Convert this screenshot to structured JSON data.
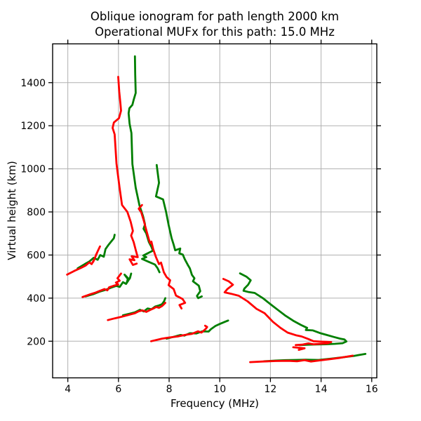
{
  "figure": {
    "title_line1": "Oblique ionogram for path length 2000 km",
    "title_line2": "Operational MUFx for this path: 15.0 MHz"
  },
  "chart_data": {
    "type": "line",
    "title": "Oblique ionogram for path length 2000 km\nOperational MUFx for this path: 15.0 MHz",
    "xlabel": "Frequency (MHz)",
    "ylabel": "Virtual height (km)",
    "xlim": [
      3.4,
      16.2
    ],
    "ylim": [
      30,
      1580
    ],
    "xticks": [
      4,
      6,
      8,
      10,
      12,
      14,
      16
    ],
    "yticks": [
      200,
      400,
      600,
      800,
      1000,
      1200,
      1400
    ],
    "grid": true,
    "legend_position": "none",
    "colors": {
      "red_trace": "#ff0000",
      "green_trace": "#007f00",
      "grid": "#b0b0b0",
      "frame": "#000000",
      "background": "#ffffff"
    },
    "line_width": 2.8,
    "series": [
      {
        "name": "green-3F-high-ray",
        "color": "green",
        "points": [
          [
            6.65,
            1522
          ],
          [
            6.66,
            1437
          ],
          [
            6.68,
            1352
          ],
          [
            6.6,
            1320
          ],
          [
            6.55,
            1297
          ],
          [
            6.43,
            1281
          ],
          [
            6.4,
            1258
          ],
          [
            6.44,
            1209
          ],
          [
            6.51,
            1166
          ],
          [
            6.55,
            1022
          ],
          [
            6.68,
            912
          ],
          [
            6.83,
            830
          ],
          [
            6.97,
            780
          ],
          [
            7.05,
            742
          ],
          [
            6.99,
            722
          ],
          [
            7.1,
            700
          ],
          [
            7.2,
            660
          ],
          [
            7.3,
            638
          ],
          [
            7.36,
            620
          ],
          [
            6.98,
            598
          ],
          [
            7.1,
            590
          ],
          [
            6.93,
            582
          ],
          [
            7.2,
            568
          ],
          [
            7.44,
            556
          ],
          [
            7.54,
            540
          ],
          [
            7.62,
            520
          ]
        ]
      },
      {
        "name": "red-3F-high-ray",
        "color": "red",
        "points": [
          [
            5.99,
            1427
          ],
          [
            6.03,
            1360
          ],
          [
            6.08,
            1300
          ],
          [
            6.1,
            1270
          ],
          [
            6.02,
            1235
          ],
          [
            5.82,
            1215
          ],
          [
            5.77,
            1190
          ],
          [
            5.85,
            1160
          ],
          [
            5.92,
            1025
          ],
          [
            6.04,
            915
          ],
          [
            6.14,
            832
          ],
          [
            6.35,
            800
          ],
          [
            6.48,
            755
          ],
          [
            6.57,
            712
          ],
          [
            6.5,
            690
          ],
          [
            6.6,
            660
          ],
          [
            6.7,
            615
          ],
          [
            6.76,
            590
          ],
          [
            6.52,
            594
          ],
          [
            6.63,
            576
          ],
          [
            6.44,
            580
          ],
          [
            6.57,
            554
          ],
          [
            6.72,
            560
          ]
        ]
      },
      {
        "name": "green-2F-high-ray",
        "color": "green",
        "points": [
          [
            7.51,
            1018
          ],
          [
            7.6,
            935
          ],
          [
            7.48,
            872
          ],
          [
            7.76,
            858
          ],
          [
            7.88,
            800
          ],
          [
            7.98,
            740
          ],
          [
            8.1,
            678
          ],
          [
            8.18,
            648
          ],
          [
            8.24,
            622
          ],
          [
            8.44,
            630
          ],
          [
            8.4,
            608
          ],
          [
            8.54,
            602
          ],
          [
            8.62,
            580
          ],
          [
            8.74,
            554
          ],
          [
            8.82,
            538
          ],
          [
            8.9,
            508
          ],
          [
            9.0,
            492
          ],
          [
            8.94,
            478
          ],
          [
            9.17,
            458
          ],
          [
            9.23,
            432
          ],
          [
            9.1,
            410
          ],
          [
            9.15,
            400
          ],
          [
            9.29,
            408
          ]
        ]
      },
      {
        "name": "red-2F-high-ray",
        "color": "red",
        "points": [
          [
            6.93,
            832
          ],
          [
            6.8,
            815
          ],
          [
            6.9,
            798
          ],
          [
            7.0,
            760
          ],
          [
            7.1,
            715
          ],
          [
            7.2,
            672
          ],
          [
            7.25,
            655
          ],
          [
            7.3,
            662
          ],
          [
            7.37,
            628
          ],
          [
            7.48,
            590
          ],
          [
            7.6,
            558
          ],
          [
            7.68,
            565
          ],
          [
            7.79,
            520
          ],
          [
            7.9,
            498
          ],
          [
            8.04,
            483
          ],
          [
            7.98,
            460
          ],
          [
            8.18,
            442
          ],
          [
            8.27,
            412
          ],
          [
            8.53,
            396
          ],
          [
            8.63,
            378
          ],
          [
            8.41,
            368
          ],
          [
            8.49,
            352
          ]
        ]
      },
      {
        "name": "green-2F-low-ray",
        "color": "green",
        "points": [
          [
            6.18,
            320
          ],
          [
            6.45,
            328
          ],
          [
            6.65,
            334
          ],
          [
            6.85,
            346
          ],
          [
            7.0,
            338
          ],
          [
            7.15,
            352
          ],
          [
            7.3,
            348
          ],
          [
            7.45,
            361
          ],
          [
            7.6,
            366
          ],
          [
            7.72,
            372
          ],
          [
            7.8,
            385
          ],
          [
            7.85,
            400
          ]
        ]
      },
      {
        "name": "red-2F-low-ray",
        "color": "red",
        "points": [
          [
            5.58,
            298
          ],
          [
            5.85,
            306
          ],
          [
            6.1,
            313
          ],
          [
            6.4,
            322
          ],
          [
            6.65,
            330
          ],
          [
            6.8,
            339
          ],
          [
            6.95,
            343
          ],
          [
            7.1,
            336
          ],
          [
            7.28,
            347
          ],
          [
            7.4,
            353
          ],
          [
            7.49,
            359
          ],
          [
            7.6,
            355
          ],
          [
            7.72,
            363
          ],
          [
            7.85,
            378
          ]
        ]
      },
      {
        "name": "green-1F-low-ray",
        "color": "green",
        "points": [
          [
            7.9,
            212
          ],
          [
            8.2,
            221
          ],
          [
            8.45,
            229
          ],
          [
            8.6,
            226
          ],
          [
            8.82,
            237
          ],
          [
            9.08,
            236
          ],
          [
            9.31,
            246
          ],
          [
            9.56,
            245
          ],
          [
            9.65,
            256
          ],
          [
            9.83,
            271
          ],
          [
            10.0,
            280
          ],
          [
            10.2,
            290
          ],
          [
            10.33,
            296
          ]
        ]
      },
      {
        "name": "red-1F-low-ray",
        "color": "red",
        "points": [
          [
            7.29,
            200
          ],
          [
            7.5,
            206
          ],
          [
            7.72,
            212
          ],
          [
            7.98,
            217
          ],
          [
            8.34,
            222
          ],
          [
            8.62,
            229
          ],
          [
            8.89,
            234
          ],
          [
            9.14,
            246
          ],
          [
            9.28,
            240
          ],
          [
            9.45,
            258
          ],
          [
            9.5,
            266
          ],
          [
            9.42,
            272
          ]
        ]
      },
      {
        "name": "green-1F-main",
        "color": "green",
        "points": [
          [
            10.8,
            515
          ],
          [
            11.05,
            500
          ],
          [
            11.22,
            483
          ],
          [
            11.12,
            462
          ],
          [
            10.97,
            444
          ],
          [
            10.94,
            434
          ],
          [
            11.15,
            428
          ],
          [
            11.38,
            424
          ],
          [
            11.7,
            400
          ],
          [
            12.0,
            372
          ],
          [
            12.3,
            345
          ],
          [
            12.6,
            318
          ],
          [
            12.9,
            295
          ],
          [
            13.2,
            276
          ],
          [
            13.45,
            262
          ],
          [
            13.4,
            252
          ],
          [
            13.68,
            250
          ],
          [
            13.95,
            238
          ],
          [
            14.2,
            230
          ],
          [
            14.5,
            220
          ],
          [
            14.75,
            212
          ],
          [
            14.92,
            208
          ],
          [
            15.0,
            199
          ],
          [
            14.85,
            191
          ],
          [
            14.55,
            188
          ],
          [
            14.2,
            186
          ],
          [
            13.85,
            185
          ],
          [
            13.5,
            184
          ],
          [
            13.15,
            182
          ]
        ]
      },
      {
        "name": "red-1F-main",
        "color": "red",
        "points": [
          [
            10.14,
            489
          ],
          [
            10.35,
            478
          ],
          [
            10.52,
            462
          ],
          [
            10.3,
            442
          ],
          [
            10.19,
            427
          ],
          [
            10.45,
            420
          ],
          [
            10.75,
            411
          ],
          [
            11.1,
            385
          ],
          [
            11.45,
            350
          ],
          [
            11.77,
            330
          ],
          [
            12.1,
            290
          ],
          [
            12.4,
            262
          ],
          [
            12.68,
            240
          ],
          [
            13.0,
            228
          ],
          [
            13.23,
            222
          ],
          [
            13.5,
            210
          ],
          [
            13.7,
            200
          ],
          [
            14.0,
            198
          ],
          [
            14.2,
            197
          ],
          [
            14.4,
            196
          ],
          [
            14.25,
            190
          ],
          [
            13.95,
            188
          ],
          [
            13.7,
            186
          ],
          [
            13.5,
            190
          ],
          [
            13.25,
            184
          ],
          [
            13.0,
            182
          ]
        ]
      },
      {
        "name": "red-1F-low-stub",
        "color": "red",
        "points": [
          [
            12.9,
            172
          ],
          [
            13.35,
            167
          ],
          [
            13.12,
            160
          ]
        ]
      },
      {
        "name": "green-3F-low-ray",
        "color": "green",
        "points": [
          [
            4.7,
            408
          ],
          [
            5.0,
            418
          ],
          [
            5.25,
            430
          ],
          [
            5.49,
            438
          ],
          [
            5.7,
            448
          ],
          [
            5.91,
            457
          ],
          [
            6.05,
            452
          ],
          [
            6.18,
            474
          ],
          [
            6.3,
            466
          ],
          [
            6.4,
            484
          ],
          [
            6.24,
            509
          ],
          [
            6.38,
            492
          ],
          [
            6.33,
            474
          ],
          [
            6.45,
            492
          ],
          [
            6.5,
            514
          ]
        ]
      },
      {
        "name": "red-3F-low-ray",
        "color": "red",
        "points": [
          [
            4.58,
            405
          ],
          [
            4.89,
            418
          ],
          [
            5.1,
            426
          ],
          [
            5.27,
            434
          ],
          [
            5.45,
            442
          ],
          [
            5.56,
            436
          ],
          [
            5.63,
            450
          ],
          [
            5.8,
            457
          ],
          [
            5.99,
            463
          ],
          [
            5.9,
            472
          ],
          [
            6.05,
            481
          ],
          [
            5.96,
            492
          ],
          [
            6.1,
            514
          ]
        ]
      },
      {
        "name": "green-4F-ray",
        "color": "green",
        "points": [
          [
            4.39,
            538
          ],
          [
            4.67,
            558
          ],
          [
            4.85,
            570
          ],
          [
            5.02,
            587
          ],
          [
            5.18,
            578
          ],
          [
            5.28,
            600
          ],
          [
            5.42,
            592
          ],
          [
            5.49,
            628
          ],
          [
            5.6,
            646
          ],
          [
            5.82,
            678
          ],
          [
            5.85,
            694
          ]
        ]
      },
      {
        "name": "red-4F-ray",
        "color": "red",
        "points": [
          [
            3.97,
            509
          ],
          [
            4.25,
            526
          ],
          [
            4.53,
            541
          ],
          [
            4.7,
            551
          ],
          [
            4.85,
            566
          ],
          [
            4.94,
            558
          ],
          [
            5.05,
            581
          ],
          [
            5.0,
            568
          ],
          [
            5.16,
            612
          ],
          [
            5.1,
            598
          ],
          [
            5.27,
            640
          ]
        ]
      },
      {
        "name": "green-1E-ray",
        "color": "green",
        "points": [
          [
            11.75,
            107
          ],
          [
            12.2,
            110
          ],
          [
            12.6,
            112
          ],
          [
            13.0,
            113
          ],
          [
            13.4,
            114
          ],
          [
            13.9,
            113
          ],
          [
            14.4,
            119
          ],
          [
            14.9,
            126
          ],
          [
            15.3,
            132
          ],
          [
            15.75,
            141
          ]
        ]
      },
      {
        "name": "red-1E-ray",
        "color": "red",
        "points": [
          [
            11.2,
            103
          ],
          [
            11.7,
            106
          ],
          [
            12.2,
            108
          ],
          [
            12.7,
            109
          ],
          [
            13.05,
            107
          ],
          [
            13.35,
            112
          ],
          [
            13.6,
            106
          ],
          [
            13.95,
            111
          ],
          [
            14.3,
            116
          ],
          [
            14.7,
            122
          ],
          [
            15.25,
            133
          ]
        ]
      }
    ]
  }
}
